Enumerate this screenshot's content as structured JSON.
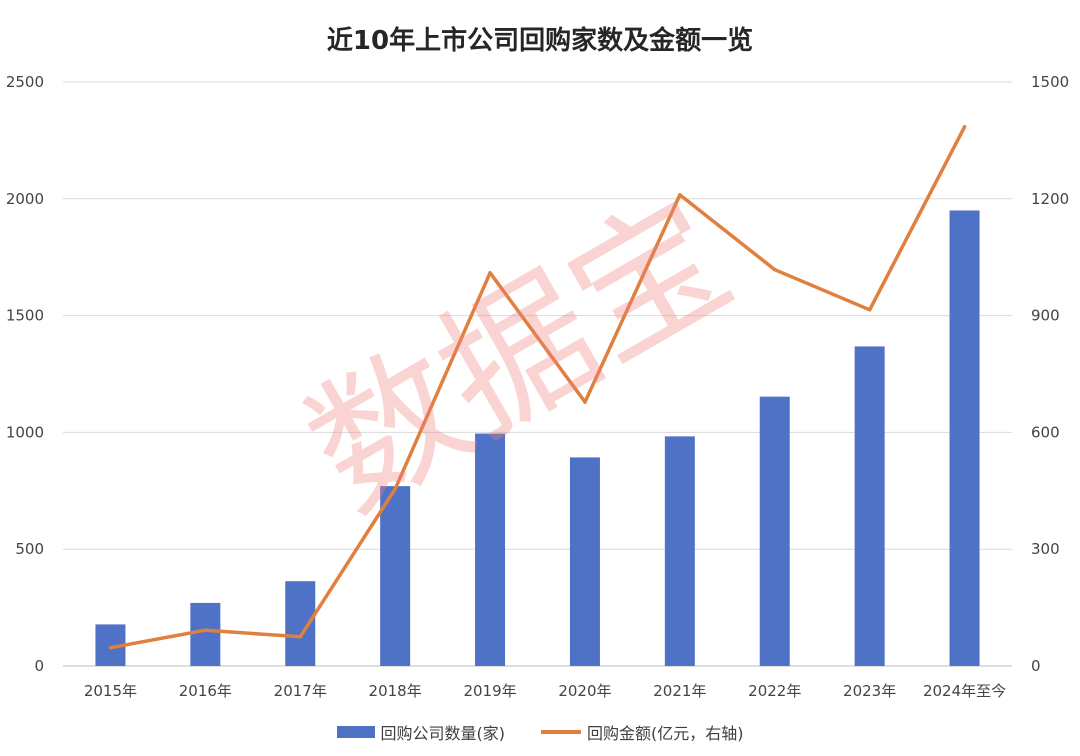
{
  "chart_data": {
    "type": "bar+line",
    "title": "近10年上市公司回购家数及金额一览",
    "categories": [
      "2015年",
      "2016年",
      "2017年",
      "2018年",
      "2019年",
      "2020年",
      "2021年",
      "2022年",
      "2023年",
      "2024年至今"
    ],
    "series": [
      {
        "name": "回购公司数量(家)",
        "type": "bar",
        "axis": "left",
        "color": "#4f71c6",
        "values": [
          178,
          270,
          363,
          770,
          995,
          893,
          983,
          1153,
          1368,
          1950
        ]
      },
      {
        "name": "回购金额(亿元，右轴)",
        "type": "line",
        "axis": "right",
        "color": "#e07f3e",
        "values": [
          47,
          92,
          75,
          455,
          1010,
          678,
          1210,
          1018,
          915,
          1385
        ]
      }
    ],
    "y_left": {
      "range": [
        0,
        2500
      ],
      "ticks": [
        "0",
        "500",
        "1000",
        "1500",
        "2000",
        "2500"
      ]
    },
    "y_right": {
      "range": [
        0,
        1500
      ],
      "ticks": [
        "0",
        "300",
        "600",
        "900",
        "1200",
        "1500"
      ]
    },
    "grid": true,
    "legend_position": "bottom"
  },
  "watermark": {
    "text": "数据宝",
    "color": "#f08080"
  }
}
